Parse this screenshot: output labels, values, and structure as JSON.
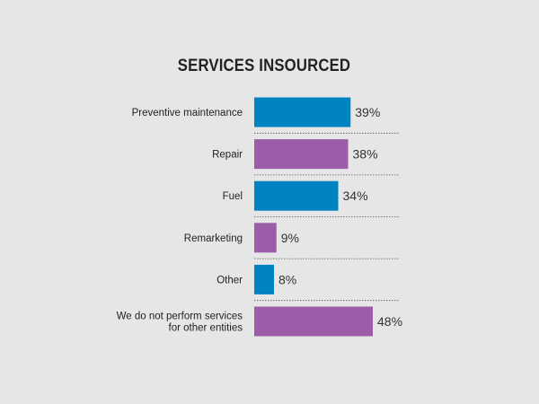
{
  "chart_data": {
    "type": "bar",
    "orientation": "horizontal",
    "title": "SERVICES INSOURCED",
    "xlabel": "",
    "ylabel": "",
    "categories": [
      [
        "Preventive maintenance"
      ],
      [
        "Repair"
      ],
      [
        "Fuel"
      ],
      [
        "Remarketing"
      ],
      [
        "Other"
      ],
      [
        "We do not perform services",
        "for other entities"
      ]
    ],
    "values": [
      39,
      38,
      34,
      9,
      8,
      48
    ],
    "value_labels": [
      "39%",
      "38%",
      "34%",
      "9%",
      "8%",
      "48%"
    ],
    "xlim": [
      0,
      100
    ],
    "grid": false,
    "legend": "none",
    "colors": [
      "#0083c2",
      "#9b5ca8",
      "#0083c2",
      "#9b5ca8",
      "#0083c2",
      "#9b5ca8"
    ]
  }
}
